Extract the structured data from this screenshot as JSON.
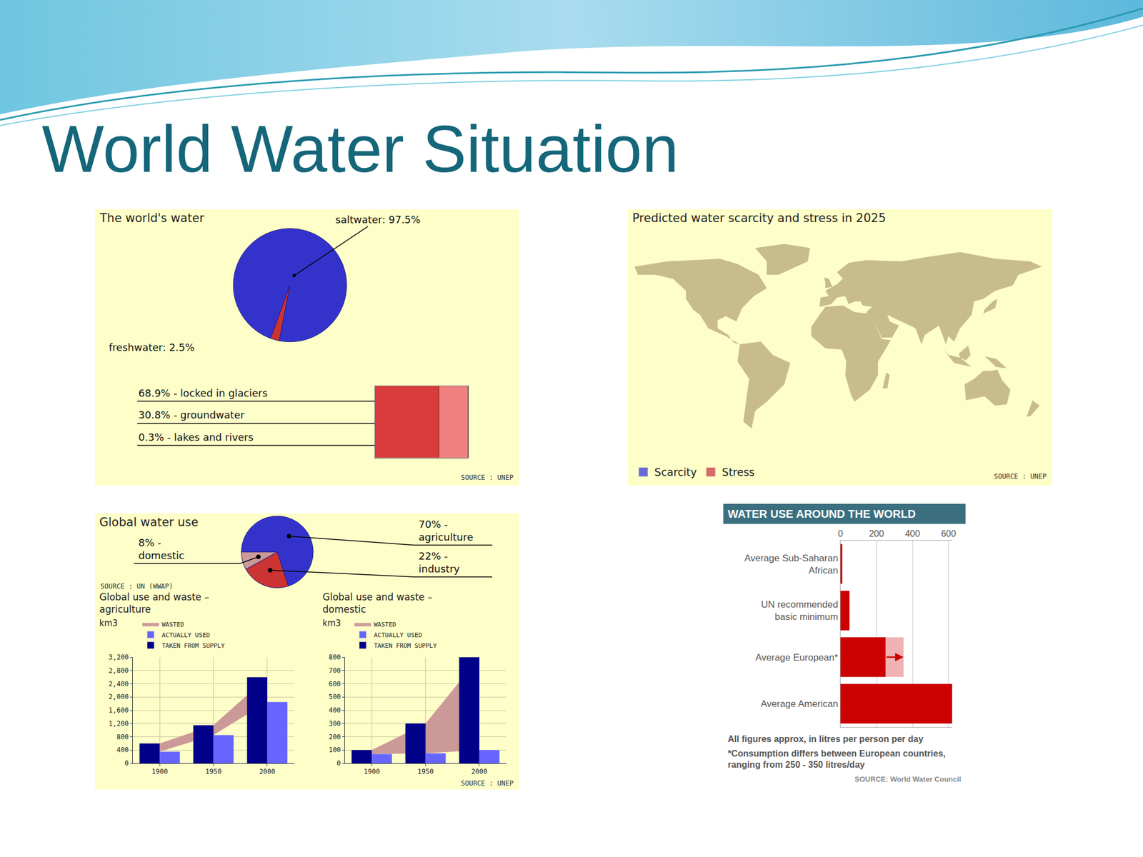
{
  "title": "World Water Situation",
  "chart_data": [
    {
      "type": "pie",
      "title": "The world's water",
      "labels": [
        "saltwater: 97.5%",
        "freshwater: 2.5%"
      ],
      "values": [
        97.5,
        2.5
      ],
      "colors": [
        "#3333cc",
        "#cc3333"
      ],
      "detail": {
        "type": "bar",
        "orientation": "horizontal",
        "stacked": true,
        "labels": [
          "68.9% - locked in glaciers",
          "30.8% - groundwater",
          "0.3% - lakes and rivers"
        ],
        "values": [
          68.9,
          30.8,
          0.3
        ],
        "colors": [
          "#d83c3c",
          "#f08080",
          "#a05a5a"
        ],
        "xlim": [
          0,
          100
        ],
        "tick_labels": false
      },
      "source": "SOURCE : UNEP"
    },
    {
      "type": "map",
      "title": "Predicted water scarcity and stress in 2025",
      "series": [
        {
          "name": "Scarcity",
          "color": "#6a6ad8"
        },
        {
          "name": "Stress",
          "color": "#d86a6a"
        }
      ],
      "legend": "bottom left",
      "source": "SOURCE : UNEP"
    },
    {
      "type": "pie",
      "title": "Global water use",
      "labels": [
        "70% - agriculture",
        "22% - industry",
        "8% - domestic"
      ],
      "values": [
        70,
        22,
        8
      ],
      "colors": [
        "#3333cc",
        "#cc3333",
        "#cc9999"
      ],
      "source": "SOURCE : UN (WWAP)"
    },
    {
      "type": "bar",
      "title": "Global use and waste – agriculture",
      "ylabel": "km3",
      "categories": [
        "1900",
        "1950",
        "2000"
      ],
      "series": [
        {
          "name": "TAKEN FROM SUPPLY",
          "type": "bar",
          "color": "#000088",
          "values": [
            600,
            1150,
            2600
          ]
        },
        {
          "name": "ACTUALLY USED",
          "type": "bar",
          "color": "#6666ff",
          "values": [
            350,
            850,
            1850
          ]
        },
        {
          "name": "WASTED",
          "type": "area",
          "color": "#cc9999",
          "values": [
            250,
            300,
            750
          ]
        }
      ],
      "ylim": [
        0,
        3200
      ],
      "yticks": [
        0,
        400,
        800,
        {
          "value": 1200,
          "label": "1,200"
        },
        {
          "value": 1600,
          "label": "1,600"
        },
        {
          "value": 2000,
          "label": "2,000"
        },
        {
          "value": 2400,
          "label": "2,400"
        },
        {
          "value": 2800,
          "label": "2,800"
        },
        {
          "value": 3200,
          "label": "3,200"
        }
      ],
      "grid": true,
      "legend": "top left"
    },
    {
      "type": "bar",
      "title": "Global use and waste – domestic",
      "ylabel": "km3",
      "categories": [
        "1900",
        "1950",
        "2000"
      ],
      "series": [
        {
          "name": "TAKEN FROM SUPPLY",
          "type": "bar",
          "color": "#000088",
          "values": [
            100,
            300,
            800
          ]
        },
        {
          "name": "ACTUALLY USED",
          "type": "bar",
          "color": "#6666ff",
          "values": [
            70,
            75,
            100
          ]
        },
        {
          "name": "WASTED",
          "type": "area",
          "color": "#cc9999",
          "values": [
            30,
            225,
            700
          ]
        }
      ],
      "ylim": [
        0,
        800
      ],
      "yticks": [
        0,
        100,
        200,
        300,
        400,
        500,
        600,
        700,
        800
      ],
      "grid": true,
      "legend": "top left",
      "source": "SOURCE : UNEP"
    },
    {
      "type": "bar",
      "orientation": "horizontal",
      "title": "WATER USE AROUND THE WORLD",
      "categories": [
        "Average Sub-Saharan African",
        "UN recommended basic minimum",
        "Average European*",
        "Average American"
      ],
      "values": [
        10,
        50,
        250,
        620
      ],
      "range_high": [
        null,
        null,
        350,
        null
      ],
      "color": "#cc0000",
      "xlim": [
        0,
        620
      ],
      "xticks": [
        0,
        200,
        400,
        600
      ],
      "grid": true,
      "notes": [
        "All figures approx, in litres per person per day",
        "*Consumption differs between European countries, ranging from 250 - 350 litres/day"
      ],
      "source": "SOURCE: World Water Council"
    }
  ]
}
